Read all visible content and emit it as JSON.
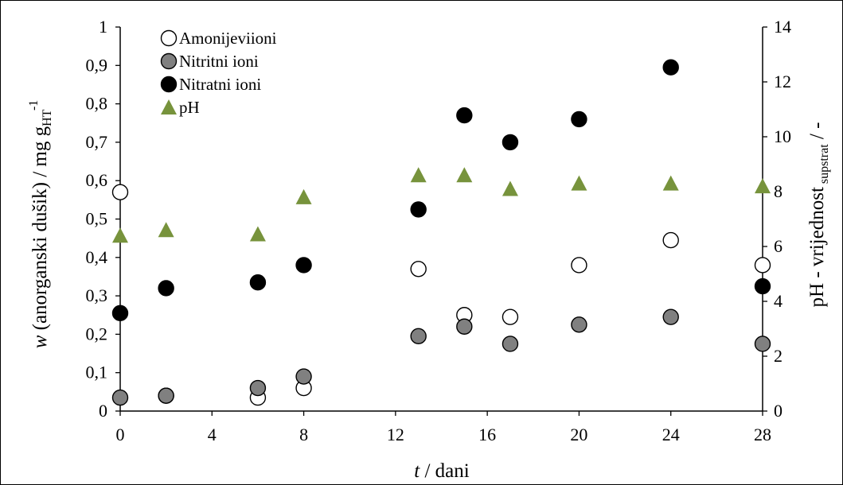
{
  "chart_data": {
    "type": "scatter",
    "x": {
      "label_italic": "t",
      "label_rest": " / dani",
      "range": [
        0,
        28
      ],
      "ticks": [
        0,
        4,
        8,
        12,
        16,
        20,
        24,
        28
      ],
      "tick_labels": [
        "0",
        "4",
        "8",
        "12",
        "16",
        "20",
        "24",
        "28"
      ]
    },
    "y_left": {
      "label_italic": "w",
      "label_rest": " (anorganski dušik) / mg g",
      "label_sub": "HT",
      "label_sup": "-1",
      "range": [
        0,
        1
      ],
      "ticks": [
        0,
        0.1,
        0.2,
        0.3,
        0.4,
        0.5,
        0.6,
        0.7,
        0.8,
        0.9,
        1
      ],
      "tick_labels": [
        "0",
        "0,1",
        "0,2",
        "0,3",
        "0,4",
        "0,5",
        "0,6",
        "0,7",
        "0,8",
        "0,9",
        "1"
      ]
    },
    "y_right": {
      "label_main": "pH - vrijednost",
      "label_sub": "supstrat",
      "label_rest": " / -",
      "range": [
        0,
        14
      ],
      "ticks": [
        0,
        2,
        4,
        6,
        8,
        10,
        12,
        14
      ],
      "tick_labels": [
        "0",
        "2",
        "4",
        "6",
        "8",
        "10",
        "12",
        "14"
      ]
    },
    "series": [
      {
        "name": "Amonijevi ioni",
        "axis": "left",
        "marker": "circle-open",
        "fill": "#ffffff",
        "points": [
          [
            0,
            0.57
          ],
          [
            2,
            0.04
          ],
          [
            6,
            0.035
          ],
          [
            8,
            0.06
          ],
          [
            13,
            0.37
          ],
          [
            15,
            0.25
          ],
          [
            17,
            0.245
          ],
          [
            20,
            0.38
          ],
          [
            24,
            0.445
          ],
          [
            28,
            0.38
          ]
        ]
      },
      {
        "name": "Nitritni ioni",
        "axis": "left",
        "marker": "circle-filled",
        "fill": "#808080",
        "points": [
          [
            0,
            0.035
          ],
          [
            2,
            0.04
          ],
          [
            6,
            0.06
          ],
          [
            8,
            0.09
          ],
          [
            13,
            0.195
          ],
          [
            15,
            0.22
          ],
          [
            17,
            0.175
          ],
          [
            20,
            0.225
          ],
          [
            24,
            0.245
          ],
          [
            28,
            0.175
          ]
        ]
      },
      {
        "name": "Nitratni ioni",
        "axis": "left",
        "marker": "circle-filled",
        "fill": "#000000",
        "points": [
          [
            0,
            0.255
          ],
          [
            2,
            0.32
          ],
          [
            6,
            0.335
          ],
          [
            8,
            0.38
          ],
          [
            13,
            0.525
          ],
          [
            15,
            0.77
          ],
          [
            17,
            0.7
          ],
          [
            20,
            0.76
          ],
          [
            24,
            0.895
          ],
          [
            28,
            0.325
          ]
        ]
      },
      {
        "name": "pH",
        "axis": "right",
        "marker": "triangle",
        "fill": "#77933c",
        "points": [
          [
            0,
            6.4
          ],
          [
            2,
            6.6
          ],
          [
            6,
            6.45
          ],
          [
            8,
            7.8
          ],
          [
            13,
            8.6
          ],
          [
            15,
            8.6
          ],
          [
            17,
            8.1
          ],
          [
            20,
            8.3
          ],
          [
            24,
            8.3
          ],
          [
            28,
            8.2
          ]
        ]
      }
    ],
    "legend": {
      "position": "top-left",
      "labels": [
        "Amonijeviioni",
        "Nitritni ioni",
        "Nitratni ioni",
        "pH"
      ]
    },
    "grid": false
  }
}
